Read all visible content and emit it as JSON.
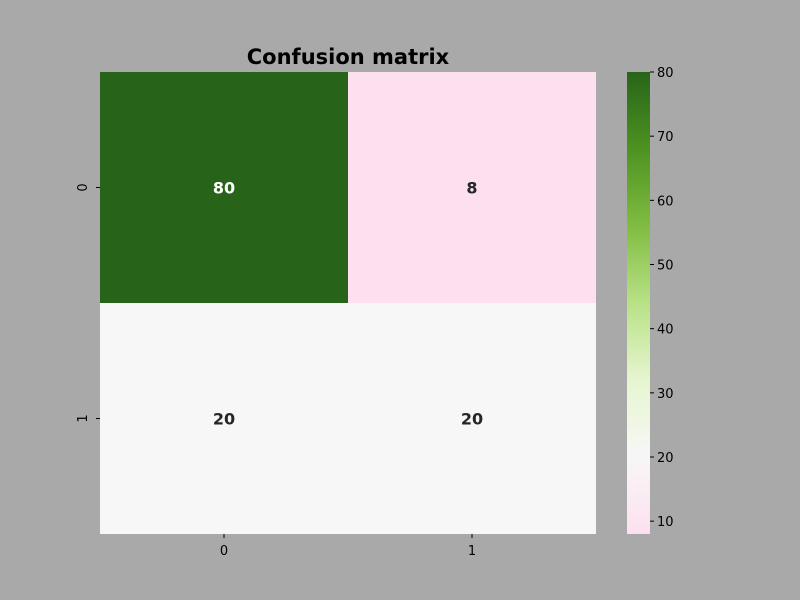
{
  "chart_data": {
    "type": "heatmap",
    "title": "Confusion matrix",
    "xlabel": "",
    "ylabel": "",
    "x_categories": [
      "0",
      "1"
    ],
    "y_categories": [
      "0",
      "1"
    ],
    "values": [
      [
        80,
        8
      ],
      [
        20,
        20
      ]
    ],
    "colormap": "PiYG",
    "color_range": [
      8,
      80
    ],
    "colorbar_ticks": [
      10,
      20,
      30,
      40,
      50,
      60,
      70,
      80
    ],
    "colorbar_position": "right",
    "grid": false
  },
  "colors": {
    "background": "#a9a9a9",
    "axis": "#000000",
    "text_dark": "#262626",
    "text_light": "#ffffff"
  }
}
